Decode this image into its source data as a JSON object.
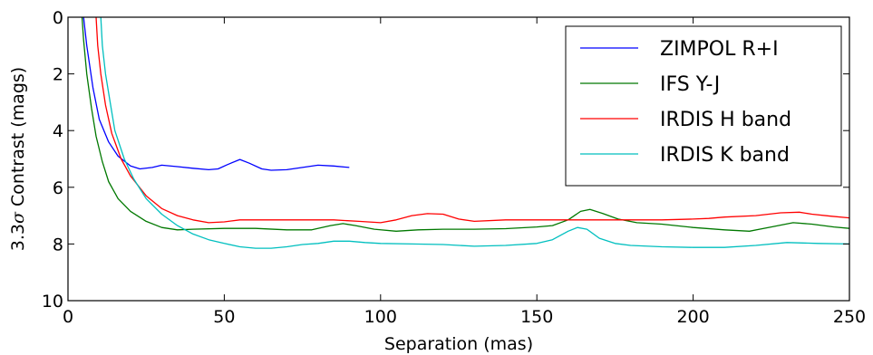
{
  "chart_data": {
    "type": "line",
    "xlabel": "Separation (mas)",
    "ylabel": "3.3σ Contrast (mags)",
    "ylabel_prefix": "3.3",
    "ylabel_sigma": "σ",
    "ylabel_suffix": " Contrast (mags)",
    "xlim": [
      0,
      250
    ],
    "ylim": [
      10,
      0
    ],
    "y_inverted": true,
    "xticks": [
      0,
      50,
      100,
      150,
      200,
      250
    ],
    "yticks": [
      0,
      2,
      4,
      6,
      8,
      10
    ],
    "grid": false,
    "legend_position": "top-right",
    "series": [
      {
        "name": "ZIMPOL R+I",
        "color": "#0000ff",
        "points": [
          [
            5,
            0
          ],
          [
            6,
            1
          ],
          [
            8,
            2.5
          ],
          [
            10,
            3.6
          ],
          [
            13,
            4.4
          ],
          [
            16,
            4.9
          ],
          [
            20,
            5.25
          ],
          [
            23,
            5.35
          ],
          [
            27,
            5.3
          ],
          [
            30,
            5.22
          ],
          [
            35,
            5.27
          ],
          [
            40,
            5.33
          ],
          [
            45,
            5.38
          ],
          [
            48,
            5.35
          ],
          [
            51,
            5.2
          ],
          [
            55,
            5.02
          ],
          [
            58,
            5.15
          ],
          [
            62,
            5.35
          ],
          [
            65,
            5.4
          ],
          [
            70,
            5.38
          ],
          [
            75,
            5.3
          ],
          [
            80,
            5.22
          ],
          [
            85,
            5.25
          ],
          [
            90,
            5.3
          ]
        ]
      },
      {
        "name": "IFS Y-J",
        "color": "#007800",
        "points": [
          [
            4.5,
            0
          ],
          [
            5,
            0.8
          ],
          [
            6,
            2
          ],
          [
            7.5,
            3.2
          ],
          [
            9,
            4.2
          ],
          [
            11,
            5.1
          ],
          [
            13,
            5.8
          ],
          [
            16,
            6.4
          ],
          [
            20,
            6.85
          ],
          [
            25,
            7.2
          ],
          [
            30,
            7.42
          ],
          [
            35,
            7.5
          ],
          [
            40,
            7.48
          ],
          [
            50,
            7.45
          ],
          [
            60,
            7.45
          ],
          [
            70,
            7.5
          ],
          [
            78,
            7.5
          ],
          [
            84,
            7.35
          ],
          [
            88,
            7.28
          ],
          [
            92,
            7.35
          ],
          [
            98,
            7.48
          ],
          [
            105,
            7.55
          ],
          [
            112,
            7.5
          ],
          [
            120,
            7.48
          ],
          [
            130,
            7.48
          ],
          [
            140,
            7.46
          ],
          [
            150,
            7.4
          ],
          [
            155,
            7.35
          ],
          [
            160,
            7.15
          ],
          [
            164,
            6.85
          ],
          [
            167,
            6.78
          ],
          [
            171,
            6.92
          ],
          [
            176,
            7.12
          ],
          [
            182,
            7.25
          ],
          [
            190,
            7.3
          ],
          [
            200,
            7.42
          ],
          [
            210,
            7.5
          ],
          [
            218,
            7.55
          ],
          [
            225,
            7.4
          ],
          [
            232,
            7.25
          ],
          [
            238,
            7.3
          ],
          [
            245,
            7.4
          ],
          [
            250,
            7.45
          ]
        ]
      },
      {
        "name": "IRDIS H band",
        "color": "#ff0000",
        "points": [
          [
            9,
            0
          ],
          [
            9.5,
            1
          ],
          [
            10.5,
            2
          ],
          [
            12,
            3.1
          ],
          [
            14,
            4.1
          ],
          [
            17,
            5
          ],
          [
            20,
            5.6
          ],
          [
            25,
            6.3
          ],
          [
            30,
            6.75
          ],
          [
            35,
            7
          ],
          [
            40,
            7.15
          ],
          [
            45,
            7.25
          ],
          [
            50,
            7.22
          ],
          [
            55,
            7.15
          ],
          [
            65,
            7.15
          ],
          [
            75,
            7.15
          ],
          [
            85,
            7.15
          ],
          [
            93,
            7.2
          ],
          [
            100,
            7.25
          ],
          [
            105,
            7.15
          ],
          [
            110,
            7
          ],
          [
            115,
            6.93
          ],
          [
            120,
            6.95
          ],
          [
            125,
            7.12
          ],
          [
            130,
            7.2
          ],
          [
            140,
            7.15
          ],
          [
            150,
            7.15
          ],
          [
            160,
            7.15
          ],
          [
            170,
            7.15
          ],
          [
            180,
            7.15
          ],
          [
            190,
            7.15
          ],
          [
            200,
            7.12
          ],
          [
            205,
            7.1
          ],
          [
            210,
            7.05
          ],
          [
            220,
            7.0
          ],
          [
            228,
            6.9
          ],
          [
            234,
            6.88
          ],
          [
            238,
            6.95
          ],
          [
            244,
            7.02
          ],
          [
            250,
            7.08
          ]
        ]
      },
      {
        "name": "IRDIS K band",
        "color": "#00bfbf",
        "points": [
          [
            10.5,
            0
          ],
          [
            11,
            1
          ],
          [
            12,
            2
          ],
          [
            13.5,
            3
          ],
          [
            15,
            4
          ],
          [
            18,
            5
          ],
          [
            21,
            5.7
          ],
          [
            25,
            6.4
          ],
          [
            30,
            6.95
          ],
          [
            35,
            7.35
          ],
          [
            40,
            7.65
          ],
          [
            45,
            7.85
          ],
          [
            50,
            7.98
          ],
          [
            55,
            8.1
          ],
          [
            60,
            8.15
          ],
          [
            65,
            8.15
          ],
          [
            70,
            8.1
          ],
          [
            75,
            8.02
          ],
          [
            80,
            7.98
          ],
          [
            85,
            7.9
          ],
          [
            90,
            7.9
          ],
          [
            95,
            7.95
          ],
          [
            100,
            7.98
          ],
          [
            110,
            8.0
          ],
          [
            120,
            8.02
          ],
          [
            130,
            8.08
          ],
          [
            140,
            8.05
          ],
          [
            150,
            7.98
          ],
          [
            155,
            7.85
          ],
          [
            160,
            7.55
          ],
          [
            163,
            7.42
          ],
          [
            166,
            7.48
          ],
          [
            170,
            7.8
          ],
          [
            175,
            7.98
          ],
          [
            180,
            8.05
          ],
          [
            190,
            8.1
          ],
          [
            200,
            8.12
          ],
          [
            210,
            8.12
          ],
          [
            220,
            8.05
          ],
          [
            230,
            7.95
          ],
          [
            240,
            7.98
          ],
          [
            250,
            8.0
          ]
        ]
      }
    ]
  }
}
